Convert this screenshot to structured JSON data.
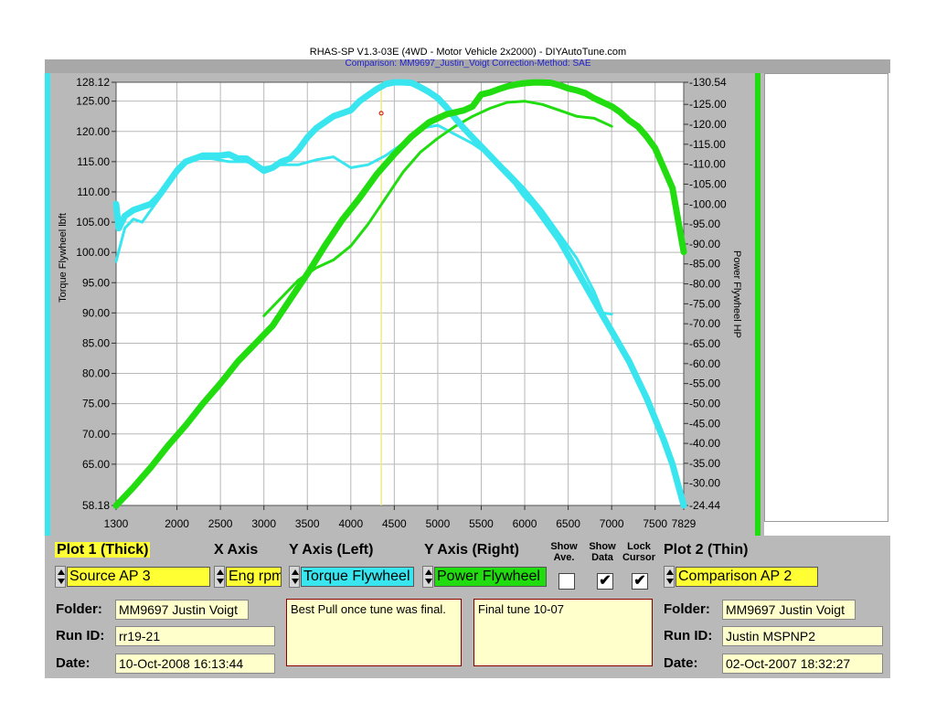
{
  "header": {
    "title": "RHAS-SP  V1.3-03E  (4WD - Motor Vehicle 2x2000) - DIYAutoTune.com",
    "subtitle": "Comparison: MM9697_Justin_Voigt    Correction-Method: SAE"
  },
  "colors": {
    "torque": "#39e5ee",
    "power": "#21dd10",
    "cursor": "#eeee88",
    "panel": "#b9b9b9"
  },
  "chart_data": {
    "type": "line",
    "ylabel_left": "Torque Flywheel lbft",
    "ylabel_right": "Power Flywheel HP",
    "xlim": [
      1300,
      7829
    ],
    "ylim_left": [
      58.18,
      128.12
    ],
    "ylim_right": [
      24.44,
      130.54
    ],
    "x_ticks": [
      "1300",
      "2000",
      "2500",
      "3000",
      "3500",
      "4000",
      "4500",
      "5000",
      "5500",
      "6000",
      "6500",
      "7000",
      "7500",
      "7829"
    ],
    "y_left_ticks": [
      "128.12",
      "125.00",
      "120.00",
      "115.00",
      "110.00",
      "105.00",
      "100.00",
      "95.00",
      "90.00",
      "85.00",
      "80.00",
      "75.00",
      "70.00",
      "65.00",
      "58.18"
    ],
    "y_right_ticks": [
      "130.54",
      "125.00",
      "120.00",
      "115.00",
      "110.00",
      "105.00",
      "100.00",
      "95.00",
      "90.00",
      "85.00",
      "80.00",
      "75.00",
      "70.00",
      "65.00",
      "60.00",
      "55.00",
      "50.00",
      "45.00",
      "40.00",
      "35.00",
      "30.00",
      "24.44"
    ],
    "cursor_rpm": 4350,
    "series": [
      {
        "axis": "left",
        "color": "#39e5ee",
        "width": 7,
        "x": [
          1300,
          1330,
          1400,
          1500,
          1600,
          1700,
          1800,
          1900,
          2000,
          2100,
          2200,
          2300,
          2400,
          2500,
          2600,
          2700,
          2800,
          2900,
          3000,
          3100,
          3200,
          3300,
          3400,
          3500,
          3600,
          3700,
          3800,
          3900,
          4000,
          4100,
          4200,
          4300,
          4400,
          4500,
          4600,
          4700,
          4800,
          4900,
          5000,
          5100,
          5200,
          5300,
          5400,
          5500,
          5600,
          5700,
          5800,
          5900,
          6000,
          6100,
          6200,
          6300,
          6400,
          6500,
          6600,
          6700,
          6800,
          6900,
          7000,
          7100,
          7200,
          7300,
          7400,
          7500,
          7600,
          7700,
          7829
        ],
        "y": [
          108,
          104,
          106,
          107,
          107.5,
          108,
          109.5,
          111.5,
          113.5,
          115,
          115.5,
          116,
          116,
          116,
          116.2,
          115.5,
          115.5,
          114.5,
          113.5,
          114,
          115,
          115.5,
          117,
          119,
          120.5,
          121.5,
          122.5,
          123,
          123.5,
          125,
          126,
          127,
          127.8,
          128.1,
          128.1,
          128,
          127.3,
          126.5,
          125.5,
          124,
          122.2,
          120.5,
          119,
          117.5,
          116,
          114.5,
          113,
          111.5,
          109.5,
          108,
          106,
          104,
          102,
          99.5,
          97,
          94.5,
          92,
          89.5,
          87,
          84.5,
          82,
          79,
          76,
          72.5,
          69,
          65,
          58.18
        ]
      },
      {
        "axis": "left",
        "color": "#39e5ee",
        "width": 3,
        "x": [
          1300,
          1400,
          1500,
          1600,
          1700,
          1800,
          1900,
          2000,
          2200,
          2400,
          2600,
          2800,
          3000,
          3200,
          3400,
          3600,
          3800,
          4000,
          4200,
          4400,
          4600,
          4800,
          5000,
          5200,
          5400,
          5600,
          5800,
          6000,
          6200,
          6400,
          6600,
          6800,
          6900,
          7000
        ],
        "y": [
          98.5,
          104,
          105.5,
          105,
          107,
          109,
          111.5,
          114,
          115.5,
          115.5,
          115,
          115,
          114,
          114.5,
          114.5,
          115.3,
          115.8,
          114,
          114.5,
          116,
          118,
          120.5,
          121,
          119.5,
          118,
          116,
          113.5,
          110.5,
          107,
          103,
          99,
          93.5,
          90,
          89.8
        ]
      },
      {
        "axis": "right",
        "color": "#21dd10",
        "width": 7,
        "x": [
          1300,
          1500,
          1700,
          1900,
          2100,
          2300,
          2500,
          2700,
          2900,
          3100,
          3300,
          3500,
          3700,
          3900,
          4100,
          4300,
          4500,
          4700,
          4900,
          5100,
          5300,
          5400,
          5500,
          5600,
          5700,
          5800,
          5900,
          6000,
          6100,
          6200,
          6300,
          6400,
          6500,
          6600,
          6700,
          6800,
          6900,
          7000,
          7100,
          7200,
          7300,
          7400,
          7500,
          7600,
          7700,
          7829
        ],
        "y": [
          24.4,
          29,
          34,
          39.5,
          44.5,
          50,
          55,
          60.5,
          65,
          69.5,
          76,
          82.5,
          89.5,
          96,
          101.5,
          107.5,
          112.5,
          117,
          120.5,
          122.5,
          123.5,
          124.5,
          127.5,
          128,
          128.8,
          129.5,
          130,
          130.3,
          130.5,
          130.5,
          130.4,
          129.8,
          129,
          128.5,
          127.8,
          126.5,
          125.5,
          124.5,
          123,
          121,
          119.5,
          117,
          114,
          109,
          104,
          88
        ]
      },
      {
        "axis": "right",
        "color": "#21dd10",
        "width": 3,
        "x": [
          3000,
          3200,
          3400,
          3600,
          3800,
          4000,
          4200,
          4400,
          4600,
          4800,
          5000,
          5200,
          5400,
          5600,
          5800,
          6000,
          6200,
          6400,
          6600,
          6800,
          7000
        ],
        "y": [
          72,
          76.5,
          81,
          84,
          86,
          89.5,
          95,
          101.5,
          108,
          113,
          116.5,
          119.5,
          122,
          124,
          125.5,
          125.8,
          125,
          123.5,
          122,
          121.5,
          119.5
        ]
      }
    ]
  },
  "panel": {
    "plot1_header": "Plot 1 (Thick)",
    "xaxis_header": "X Axis",
    "yleft_header": "Y Axis (Left)",
    "yright_header": "Y Axis (Right)",
    "show_ave_label": "Show Ave.",
    "show_data_label": "Show Data",
    "lock_cursor_label": "Lock Cursor",
    "plot2_header": "Plot 2 (Thin)",
    "plot1_source": "Source AP 3",
    "xaxis_value": "Eng rpm",
    "yleft_value": "Torque Flywheel",
    "yright_value": "Power Flywheel",
    "plot2_source": "Comparison AP 2",
    "show_ave_checked": false,
    "show_data_checked": true,
    "lock_cursor_checked": true,
    "check_mark": "✔",
    "folder_label": "Folder:",
    "runid_label": "Run ID:",
    "date_label": "Date:",
    "plot1_folder": "MM9697  Justin  Voigt",
    "plot1_runid": "rr19-21",
    "plot1_date": "10-Oct-2008  16:13:44",
    "note1": "Best Pull once tune was final.",
    "note2": "Final tune 10-07",
    "plot2_folder": "MM9697  Justin  Voigt",
    "plot2_runid": "Justin  MSPNP2",
    "plot2_date": "02-Oct-2007  18:32:27"
  }
}
